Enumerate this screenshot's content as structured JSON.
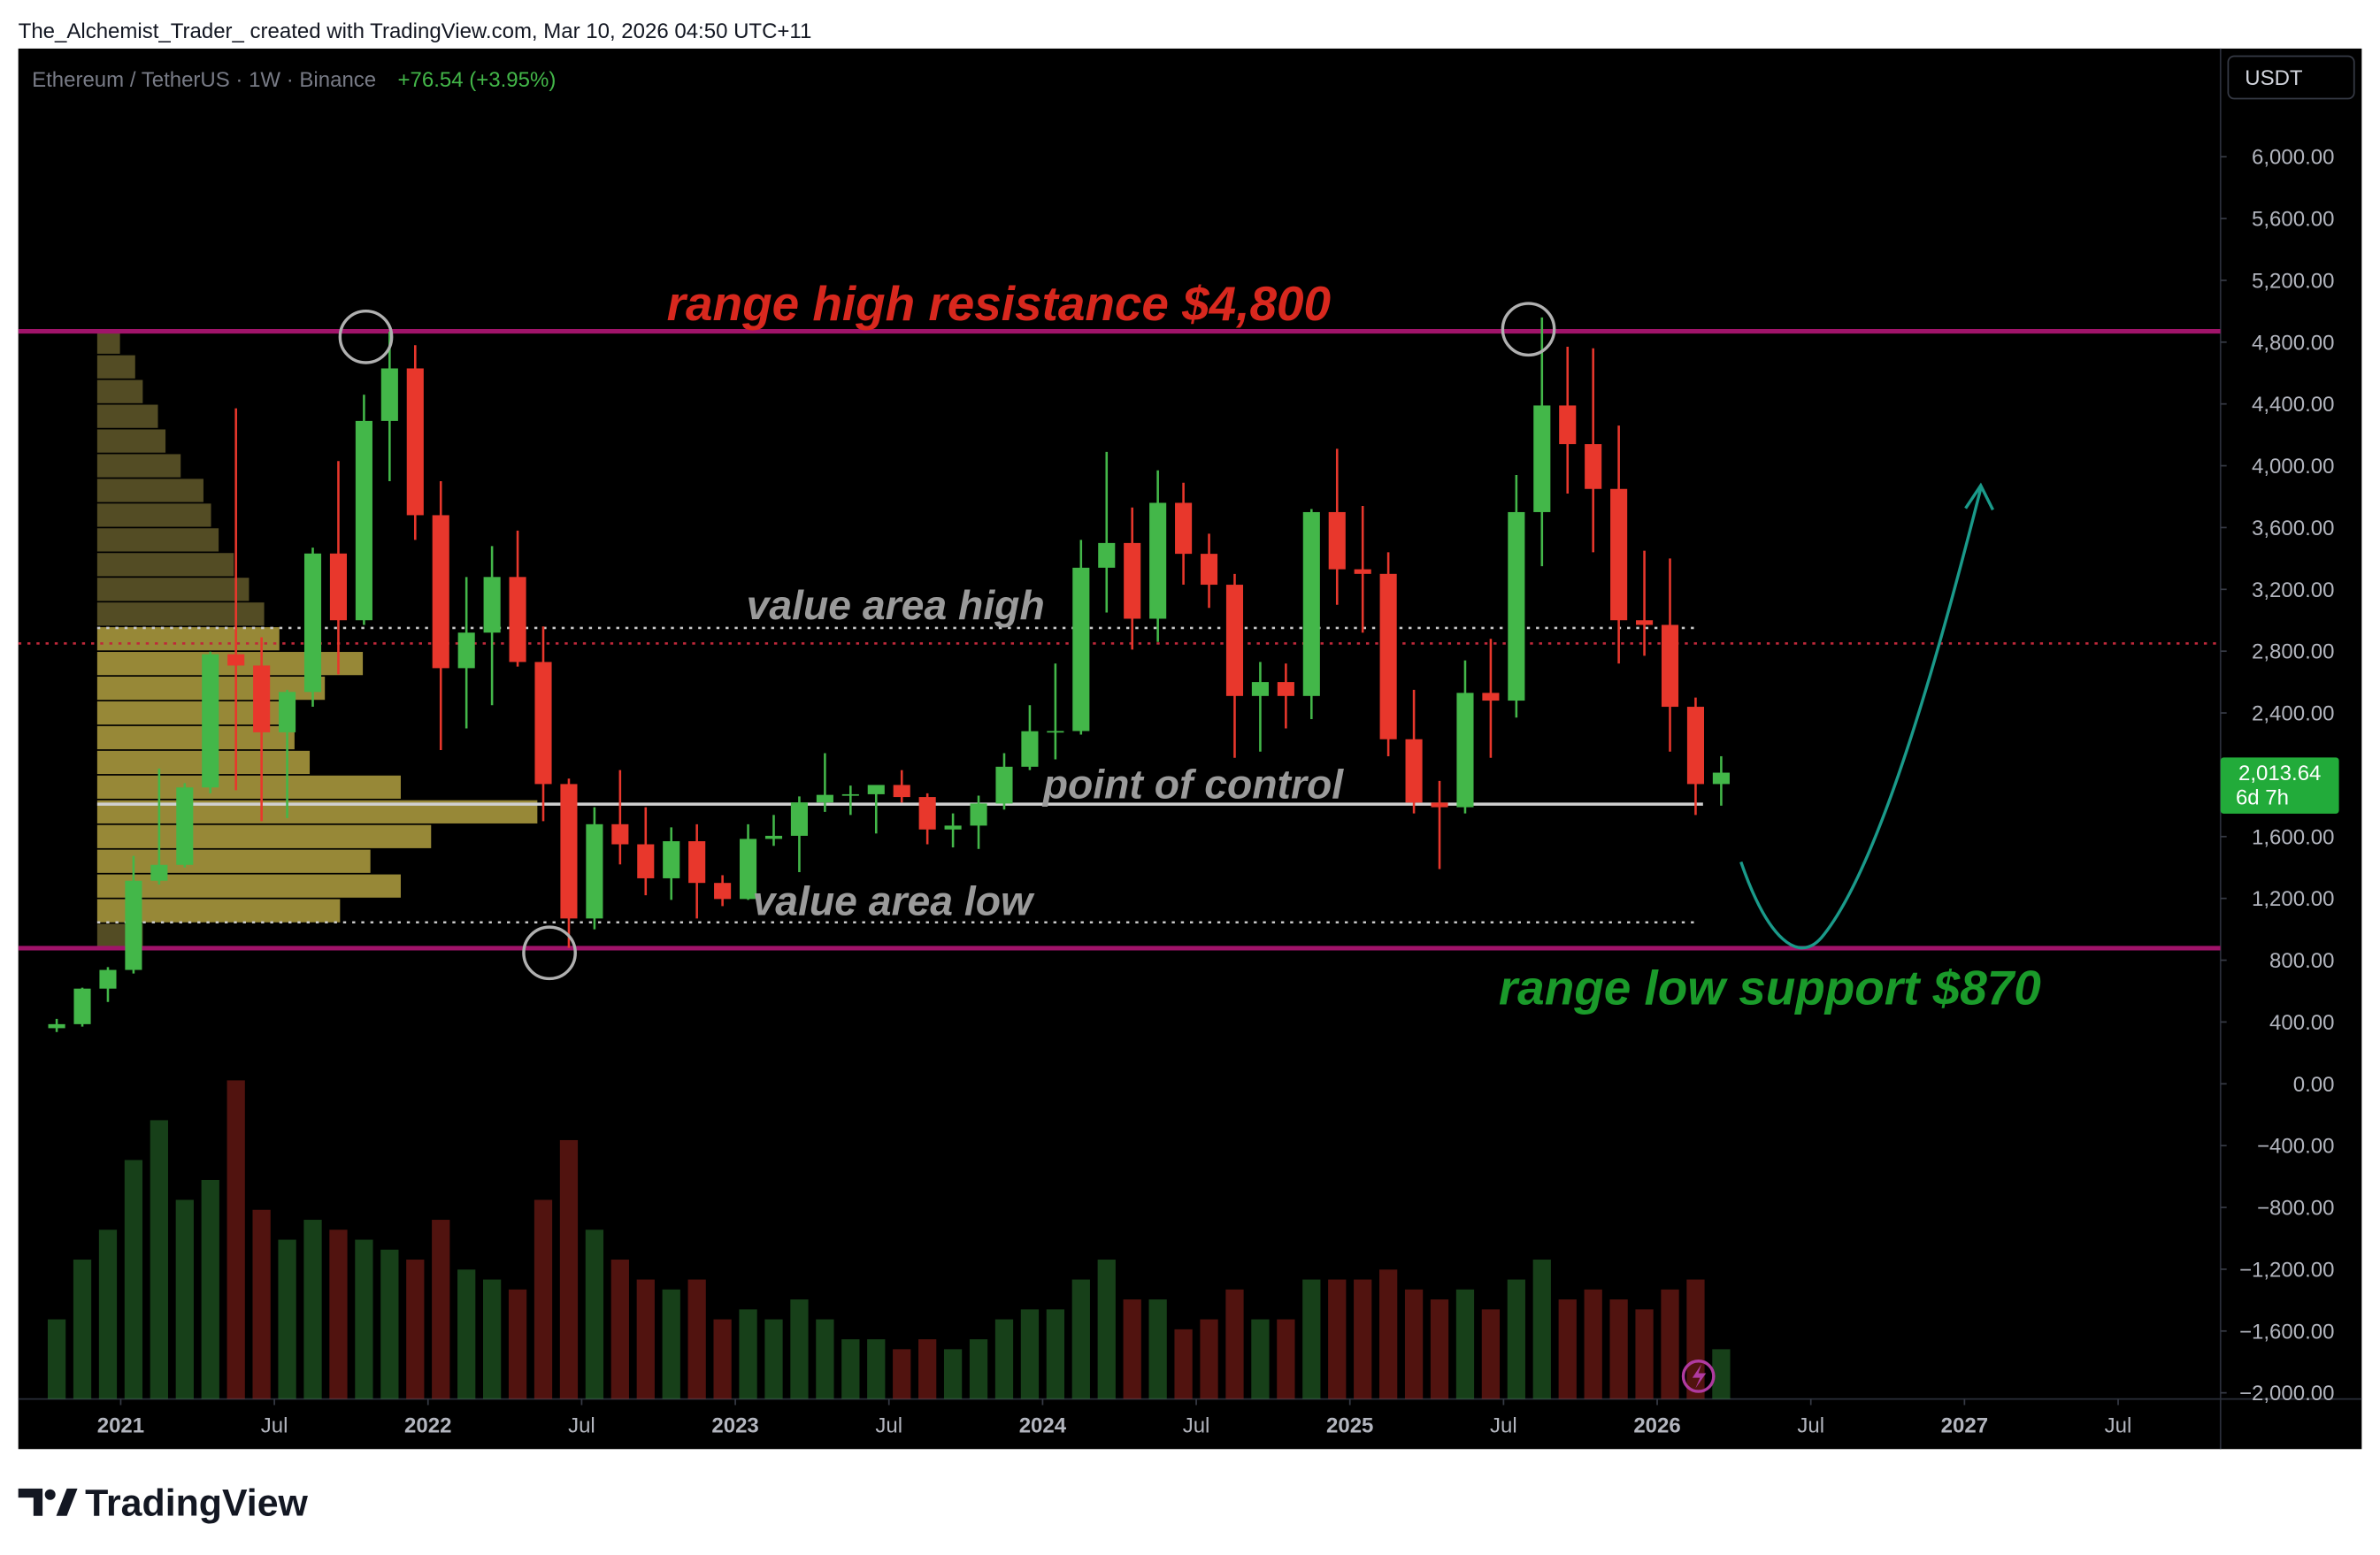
{
  "header": {
    "attribution": "The_Alchemist_Trader_ created with TradingView.com, Mar 10, 2026 04:50 UTC+11"
  },
  "footer": {
    "logo": "TradingView"
  },
  "chart_data": {
    "type": "candlestick",
    "symbol": "Ethereum / TetherUS · 1W · Binance",
    "change": "+76.54 (+3.95%)",
    "currency": "USDT",
    "up_color": "#43b749",
    "down_color": "#e8372c",
    "x": [
      "2020-10",
      "2020-11",
      "2020-12",
      "2021-01",
      "2021-02",
      "2021-03",
      "2021-04",
      "2021-05",
      "2021-06",
      "2021-07",
      "2021-08",
      "2021-09",
      "2021-10",
      "2021-11",
      "2021-12",
      "2022-01",
      "2022-02",
      "2022-03",
      "2022-04",
      "2022-05",
      "2022-06",
      "2022-07",
      "2022-08",
      "2022-09",
      "2022-10",
      "2022-11",
      "2022-12",
      "2023-01",
      "2023-02",
      "2023-03",
      "2023-04",
      "2023-05",
      "2023-06",
      "2023-07",
      "2023-08",
      "2023-09",
      "2023-10",
      "2023-11",
      "2023-12",
      "2024-01",
      "2024-02",
      "2024-03",
      "2024-04",
      "2024-05",
      "2024-06",
      "2024-07",
      "2024-08",
      "2024-09",
      "2024-10",
      "2024-11",
      "2024-12",
      "2025-01",
      "2025-02",
      "2025-03",
      "2025-04",
      "2025-05",
      "2025-06",
      "2025-07",
      "2025-08",
      "2025-09",
      "2025-10",
      "2025-11",
      "2025-12",
      "2026-01",
      "2026-02",
      "2026-03"
    ],
    "open": [
      360,
      386,
      616,
      737,
      1314,
      1417,
      1918,
      2780,
      2707,
      2275,
      2536,
      3432,
      3000,
      4290,
      4630,
      3680,
      2690,
      2920,
      3280,
      2730,
      1940,
      1070,
      1680,
      1550,
      1330,
      1570,
      1300,
      1196,
      1585,
      1605,
      1821,
      1870,
      1874,
      1934,
      1856,
      1646,
      1671,
      1814,
      2052,
      2282,
      2283,
      3340,
      3500,
      3010,
      3760,
      3430,
      3230,
      2510,
      2600,
      2510,
      3700,
      3330,
      3300,
      2230,
      1820,
      1790,
      2530,
      2480,
      3700,
      4390,
      4140,
      3850,
      3000,
      2970,
      2440,
      1940
    ],
    "high": [
      420,
      622,
      755,
      1475,
      2040,
      1946,
      2797,
      4372,
      2890,
      2550,
      3470,
      4030,
      4460,
      4868,
      4780,
      3900,
      3280,
      3480,
      3580,
      2960,
      1975,
      1790,
      2030,
      1790,
      1660,
      1680,
      1350,
      1680,
      1740,
      1860,
      2140,
      1930,
      1930,
      2030,
      1880,
      1750,
      1865,
      2140,
      2450,
      2720,
      3520,
      4090,
      3730,
      3970,
      3890,
      3560,
      3300,
      2730,
      2720,
      3720,
      4110,
      3740,
      3440,
      2550,
      1960,
      2740,
      2880,
      3940,
      4960,
      4770,
      4760,
      4260,
      3450,
      3400,
      2500,
      2120
    ],
    "low": [
      335,
      370,
      530,
      714,
      1290,
      1400,
      1880,
      1900,
      1700,
      1720,
      2440,
      2650,
      2970,
      3900,
      3520,
      2160,
      2300,
      2450,
      2700,
      1700,
      880,
      1000,
      1420,
      1220,
      1190,
      1070,
      1150,
      1190,
      1540,
      1370,
      1760,
      1740,
      1620,
      1820,
      1550,
      1530,
      1520,
      1775,
      2030,
      2100,
      2260,
      3050,
      2810,
      2860,
      3230,
      3080,
      2110,
      2150,
      2300,
      2360,
      3100,
      2920,
      2120,
      1750,
      1390,
      1750,
      2110,
      2370,
      3350,
      3820,
      3440,
      2720,
      2770,
      2150,
      1740,
      1800
    ],
    "close": [
      386,
      616,
      737,
      1314,
      1417,
      1918,
      2780,
      2707,
      2275,
      2536,
      3432,
      3000,
      4290,
      4630,
      3680,
      2690,
      2920,
      3280,
      2730,
      1940,
      1070,
      1680,
      1550,
      1330,
      1570,
      1300,
      1196,
      1585,
      1605,
      1821,
      1870,
      1874,
      1934,
      1856,
      1646,
      1671,
      1814,
      2052,
      2282,
      2283,
      3340,
      3500,
      3010,
      3760,
      3430,
      3230,
      2510,
      2600,
      2510,
      3700,
      3330,
      3300,
      2230,
      1820,
      1790,
      2530,
      2480,
      3700,
      4390,
      4140,
      3850,
      3000,
      2970,
      2440,
      1940,
      2013.64
    ],
    "volume": [
      40,
      70,
      85,
      120,
      140,
      100,
      110,
      160,
      95,
      80,
      90,
      85,
      80,
      75,
      70,
      90,
      65,
      60,
      55,
      100,
      130,
      85,
      70,
      60,
      55,
      60,
      40,
      45,
      40,
      50,
      40,
      30,
      30,
      25,
      30,
      25,
      30,
      40,
      45,
      45,
      60,
      70,
      50,
      50,
      35,
      40,
      55,
      40,
      40,
      60,
      60,
      60,
      65,
      55,
      50,
      55,
      45,
      60,
      70,
      50,
      55,
      50,
      45,
      55,
      60,
      25
    ],
    "volume_profile": {
      "prices": [
        880,
        1040,
        1200,
        1360,
        1520,
        1680,
        1840,
        2000,
        2160,
        2320,
        2480,
        2640,
        2800,
        2960,
        3120,
        3280,
        3440,
        3600,
        3760,
        3920,
        4080,
        4240,
        4400,
        4560,
        4720
      ],
      "values": [
        30,
        160,
        200,
        180,
        220,
        290,
        200,
        140,
        130,
        120,
        150,
        175,
        120,
        110,
        100,
        90,
        80,
        75,
        70,
        55,
        45,
        40,
        30,
        25,
        15
      ]
    },
    "xlim": [
      "2020-09",
      "2027-11"
    ],
    "xticks": [
      {
        "value": "2021-01",
        "label": "2021"
      },
      {
        "value": "2021-07",
        "label": "Jul"
      },
      {
        "value": "2022-01",
        "label": "2022"
      },
      {
        "value": "2022-07",
        "label": "Jul"
      },
      {
        "value": "2023-01",
        "label": "2023"
      },
      {
        "value": "2023-07",
        "label": "Jul"
      },
      {
        "value": "2024-01",
        "label": "2024"
      },
      {
        "value": "2024-07",
        "label": "Jul"
      },
      {
        "value": "2025-01",
        "label": "2025"
      },
      {
        "value": "2025-07",
        "label": "Jul"
      },
      {
        "value": "2026-01",
        "label": "2026"
      },
      {
        "value": "2026-07",
        "label": "Jul"
      },
      {
        "value": "2027-01",
        "label": "2027"
      },
      {
        "value": "2027-07",
        "label": "Jul"
      }
    ],
    "ylim": [
      -2040,
      6700
    ],
    "yticks": [
      {
        "value": 6000,
        "label": "6,000.00"
      },
      {
        "value": 5600,
        "label": "5,600.00"
      },
      {
        "value": 5200,
        "label": "5,200.00"
      },
      {
        "value": 4800,
        "label": "4,800.00"
      },
      {
        "value": 4400,
        "label": "4,400.00"
      },
      {
        "value": 4000,
        "label": "4,000.00"
      },
      {
        "value": 3600,
        "label": "3,600.00"
      },
      {
        "value": 3200,
        "label": "3,200.00"
      },
      {
        "value": 2800,
        "label": "2,800.00"
      },
      {
        "value": 2400,
        "label": "2,400.00"
      },
      {
        "value": 1600,
        "label": "1,600.00"
      },
      {
        "value": 1200,
        "label": "1,200.00"
      },
      {
        "value": 800,
        "label": "800.00"
      },
      {
        "value": 400,
        "label": "400.00"
      },
      {
        "value": 0,
        "label": "0.00"
      },
      {
        "value": -400,
        "label": "−400.00"
      },
      {
        "value": -800,
        "label": "−800.00"
      },
      {
        "value": -1200,
        "label": "−1,200.00"
      },
      {
        "value": -1600,
        "label": "−1,600.00"
      },
      {
        "value": -2000,
        "label": "−2,000.00"
      }
    ],
    "last_price": {
      "value": 2013.64,
      "label": "2,013.64"
    },
    "countdown": "6d 7h",
    "levels": {
      "range_high": 4870,
      "range_low": 878,
      "value_area_high": 2950,
      "value_area_low": 1045,
      "point_of_control": 1810,
      "dotted_level": 2850
    },
    "annotations": {
      "range_high": "range high resistance $4,800",
      "value_area_high": "value area high",
      "point_of_control": "point of control",
      "value_area_low": "value area low",
      "range_low": "range low support $870"
    }
  }
}
